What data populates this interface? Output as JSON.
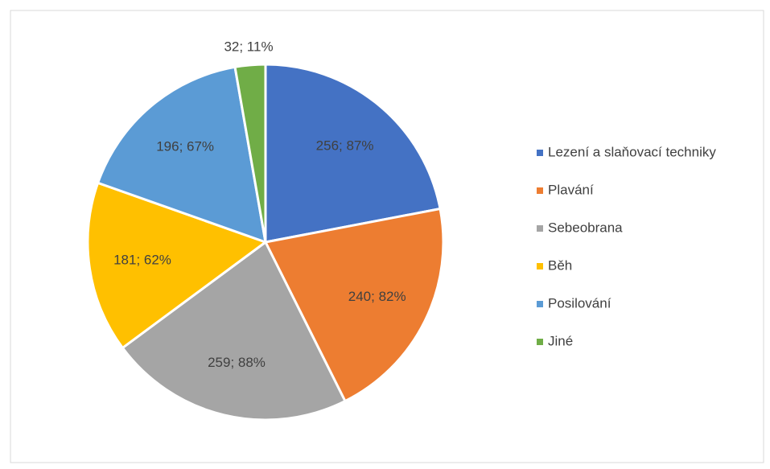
{
  "chart_data": {
    "type": "pie",
    "categories": [
      "Lezení a slaňovací techniky",
      "Plavání",
      "Sebeobrana",
      "Běh",
      "Posilování",
      "Jiné"
    ],
    "values": [
      256,
      240,
      259,
      181,
      196,
      32
    ],
    "value_labels": [
      "256; 87%",
      "240; 82%",
      "259; 88%",
      "181; 62%",
      "196; 67%",
      "32; 11%"
    ],
    "colors": [
      "#4472c4",
      "#ed7d31",
      "#a5a5a5",
      "#ffc000",
      "#5b9bd5",
      "#70ad47"
    ],
    "legend": "right"
  }
}
